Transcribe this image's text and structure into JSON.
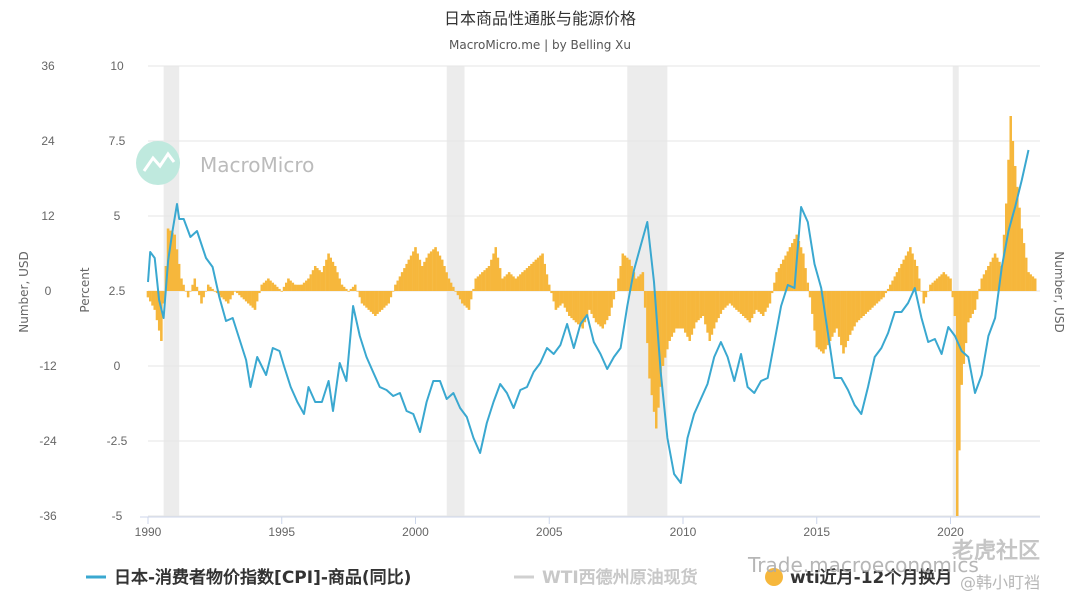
{
  "chart_data": {
    "type": "line",
    "title": "日本商品性通胀与能源价格",
    "subtitle": "MacroMicro.me | by Belling Xu",
    "watermark": "MacroMicro",
    "x_range": [
      "1990-01",
      "2023-03"
    ],
    "x_ticks": [
      "1990",
      "1995",
      "2000",
      "2005",
      "2010",
      "2015",
      "2020"
    ],
    "recessions": [
      [
        "1990-08",
        "1991-03"
      ],
      [
        "2001-03",
        "2001-11"
      ],
      [
        "2007-12",
        "2009-06"
      ],
      [
        "2020-02",
        "2020-04"
      ]
    ],
    "axes": {
      "left_outer": {
        "label": "Number, USD",
        "ticks": [
          "36",
          "24",
          "12",
          "0",
          "-12",
          "-24",
          "-36"
        ],
        "range": [
          -36,
          36
        ]
      },
      "left_inner": {
        "label": "Percent",
        "ticks": [
          "10",
          "7.5",
          "5",
          "2.5",
          "0",
          "-2.5",
          "-5"
        ],
        "range": [
          -5,
          10
        ]
      },
      "right": {
        "label": "Number, USD"
      }
    },
    "series": [
      {
        "name": "日本-消费者物价指数[CPI]-商品(同比)",
        "color": "#3aa8d0",
        "axis": "left_inner",
        "points": [
          [
            "1990-01",
            2.8
          ],
          [
            "1990-02",
            3.8
          ],
          [
            "1990-04",
            3.6
          ],
          [
            "1990-06",
            2.2
          ],
          [
            "1990-08",
            1.6
          ],
          [
            "1990-10",
            3.5
          ],
          [
            "1990-12",
            4.5
          ],
          [
            "1991-02",
            5.4
          ],
          [
            "1991-03",
            4.9
          ],
          [
            "1991-05",
            4.9
          ],
          [
            "1991-08",
            4.3
          ],
          [
            "1991-11",
            4.5
          ],
          [
            "1992-03",
            3.6
          ],
          [
            "1992-06",
            3.3
          ],
          [
            "1992-09",
            2.3
          ],
          [
            "1992-12",
            1.5
          ],
          [
            "1993-03",
            1.6
          ],
          [
            "1993-06",
            0.9
          ],
          [
            "1993-09",
            0.2
          ],
          [
            "1993-11",
            -0.7
          ],
          [
            "1994-02",
            0.3
          ],
          [
            "1994-06",
            -0.3
          ],
          [
            "1994-09",
            0.6
          ],
          [
            "1994-12",
            0.5
          ],
          [
            "1995-02",
            0.0
          ],
          [
            "1995-05",
            -0.7
          ],
          [
            "1995-08",
            -1.2
          ],
          [
            "1995-11",
            -1.6
          ],
          [
            "1996-01",
            -0.7
          ],
          [
            "1996-04",
            -1.2
          ],
          [
            "1996-07",
            -1.2
          ],
          [
            "1996-10",
            -0.5
          ],
          [
            "1996-12",
            -1.5
          ],
          [
            "1997-03",
            0.1
          ],
          [
            "1997-06",
            -0.5
          ],
          [
            "1997-09",
            2.0
          ],
          [
            "1997-12",
            1.0
          ],
          [
            "1998-03",
            0.3
          ],
          [
            "1998-06",
            -0.2
          ],
          [
            "1998-09",
            -0.7
          ],
          [
            "1998-12",
            -0.8
          ],
          [
            "1999-03",
            -1.0
          ],
          [
            "1999-06",
            -0.9
          ],
          [
            "1999-09",
            -1.5
          ],
          [
            "1999-12",
            -1.6
          ],
          [
            "2000-03",
            -2.2
          ],
          [
            "2000-06",
            -1.2
          ],
          [
            "2000-09",
            -0.5
          ],
          [
            "2000-12",
            -0.5
          ],
          [
            "2001-03",
            -1.1
          ],
          [
            "2001-06",
            -0.9
          ],
          [
            "2001-09",
            -1.4
          ],
          [
            "2001-12",
            -1.7
          ],
          [
            "2002-03",
            -2.4
          ],
          [
            "2002-06",
            -2.9
          ],
          [
            "2002-09",
            -1.9
          ],
          [
            "2002-12",
            -1.2
          ],
          [
            "2003-03",
            -0.6
          ],
          [
            "2003-06",
            -0.9
          ],
          [
            "2003-09",
            -1.4
          ],
          [
            "2003-12",
            -0.8
          ],
          [
            "2004-03",
            -0.7
          ],
          [
            "2004-06",
            -0.2
          ],
          [
            "2004-09",
            0.1
          ],
          [
            "2004-12",
            0.6
          ],
          [
            "2005-03",
            0.4
          ],
          [
            "2005-06",
            0.7
          ],
          [
            "2005-09",
            1.4
          ],
          [
            "2005-12",
            0.6
          ],
          [
            "2006-03",
            1.4
          ],
          [
            "2006-06",
            1.7
          ],
          [
            "2006-09",
            0.8
          ],
          [
            "2006-12",
            0.4
          ],
          [
            "2007-03",
            -0.1
          ],
          [
            "2007-06",
            0.3
          ],
          [
            "2007-09",
            0.6
          ],
          [
            "2007-12",
            2.0
          ],
          [
            "2008-03",
            3.2
          ],
          [
            "2008-06",
            4.0
          ],
          [
            "2008-09",
            4.8
          ],
          [
            "2008-12",
            2.8
          ],
          [
            "2009-03",
            -0.2
          ],
          [
            "2009-06",
            -2.4
          ],
          [
            "2009-09",
            -3.6
          ],
          [
            "2009-12",
            -3.9
          ],
          [
            "2010-03",
            -2.4
          ],
          [
            "2010-06",
            -1.6
          ],
          [
            "2010-09",
            -1.1
          ],
          [
            "2010-12",
            -0.6
          ],
          [
            "2011-03",
            0.3
          ],
          [
            "2011-06",
            0.8
          ],
          [
            "2011-09",
            0.3
          ],
          [
            "2011-12",
            -0.5
          ],
          [
            "2012-03",
            0.4
          ],
          [
            "2012-06",
            -0.7
          ],
          [
            "2012-09",
            -0.9
          ],
          [
            "2012-12",
            -0.5
          ],
          [
            "2013-03",
            -0.4
          ],
          [
            "2013-06",
            0.8
          ],
          [
            "2013-09",
            2.0
          ],
          [
            "2013-12",
            2.7
          ],
          [
            "2014-03",
            2.6
          ],
          [
            "2014-06",
            5.3
          ],
          [
            "2014-09",
            4.8
          ],
          [
            "2014-12",
            3.4
          ],
          [
            "2015-03",
            2.6
          ],
          [
            "2015-06",
            1.1
          ],
          [
            "2015-09",
            -0.4
          ],
          [
            "2015-12",
            -0.4
          ],
          [
            "2016-03",
            -0.8
          ],
          [
            "2016-06",
            -1.3
          ],
          [
            "2016-09",
            -1.6
          ],
          [
            "2016-12",
            -0.7
          ],
          [
            "2017-03",
            0.3
          ],
          [
            "2017-06",
            0.6
          ],
          [
            "2017-09",
            1.1
          ],
          [
            "2017-12",
            1.8
          ],
          [
            "2018-03",
            1.8
          ],
          [
            "2018-06",
            2.1
          ],
          [
            "2018-09",
            2.6
          ],
          [
            "2018-12",
            1.6
          ],
          [
            "2019-03",
            0.8
          ],
          [
            "2019-06",
            0.9
          ],
          [
            "2019-09",
            0.4
          ],
          [
            "2019-12",
            1.3
          ],
          [
            "2020-03",
            1.0
          ],
          [
            "2020-06",
            0.5
          ],
          [
            "2020-09",
            0.3
          ],
          [
            "2020-12",
            -0.9
          ],
          [
            "2021-03",
            -0.3
          ],
          [
            "2021-06",
            1.0
          ],
          [
            "2021-09",
            1.6
          ],
          [
            "2021-12",
            3.3
          ],
          [
            "2022-03",
            4.5
          ],
          [
            "2022-06",
            5.3
          ],
          [
            "2022-09",
            6.2
          ],
          [
            "2022-12",
            7.2
          ]
        ]
      },
      {
        "name": "WTI西德州原油现货",
        "color": "#d0d0d0",
        "axis": "right"
      },
      {
        "name": "wti近月-12个月换月",
        "color": "#f6b73c",
        "axis": "left_outer",
        "type": "bar",
        "points": [
          [
            "1990-01",
            -1
          ],
          [
            "1990-04",
            -3
          ],
          [
            "1990-07",
            -8
          ],
          [
            "1990-10",
            10
          ],
          [
            "1991-01",
            9
          ],
          [
            "1991-04",
            2
          ],
          [
            "1991-07",
            -1
          ],
          [
            "1991-10",
            2
          ],
          [
            "1992-01",
            -2
          ],
          [
            "1992-04",
            1
          ],
          [
            "1992-07",
            0
          ],
          [
            "1992-10",
            -1
          ],
          [
            "1993-01",
            -2
          ],
          [
            "1993-04",
            0
          ],
          [
            "1993-07",
            -1
          ],
          [
            "1993-10",
            -2
          ],
          [
            "1994-01",
            -3
          ],
          [
            "1994-04",
            1
          ],
          [
            "1994-07",
            2
          ],
          [
            "1994-10",
            1
          ],
          [
            "1995-01",
            0
          ],
          [
            "1995-04",
            2
          ],
          [
            "1995-07",
            1
          ],
          [
            "1995-10",
            1
          ],
          [
            "1996-01",
            2
          ],
          [
            "1996-04",
            4
          ],
          [
            "1996-07",
            3
          ],
          [
            "1996-10",
            6
          ],
          [
            "1997-01",
            4
          ],
          [
            "1997-04",
            1
          ],
          [
            "1997-07",
            0
          ],
          [
            "1997-10",
            1
          ],
          [
            "1998-01",
            -2
          ],
          [
            "1998-04",
            -3
          ],
          [
            "1998-07",
            -4
          ],
          [
            "1998-10",
            -3
          ],
          [
            "1999-01",
            -2
          ],
          [
            "1999-04",
            1
          ],
          [
            "1999-07",
            3
          ],
          [
            "1999-10",
            5
          ],
          [
            "2000-01",
            7
          ],
          [
            "2000-04",
            4
          ],
          [
            "2000-07",
            6
          ],
          [
            "2000-10",
            7
          ],
          [
            "2001-01",
            5
          ],
          [
            "2001-04",
            2
          ],
          [
            "2001-07",
            0
          ],
          [
            "2001-10",
            -2
          ],
          [
            "2002-01",
            -3
          ],
          [
            "2002-04",
            2
          ],
          [
            "2002-07",
            3
          ],
          [
            "2002-10",
            4
          ],
          [
            "2003-01",
            7
          ],
          [
            "2003-04",
            2
          ],
          [
            "2003-07",
            3
          ],
          [
            "2003-10",
            2
          ],
          [
            "2004-01",
            3
          ],
          [
            "2004-04",
            4
          ],
          [
            "2004-07",
            5
          ],
          [
            "2004-10",
            6
          ],
          [
            "2005-01",
            1
          ],
          [
            "2005-04",
            -3
          ],
          [
            "2005-07",
            -2
          ],
          [
            "2005-10",
            -4
          ],
          [
            "2006-01",
            -5
          ],
          [
            "2006-04",
            -6
          ],
          [
            "2006-07",
            -3
          ],
          [
            "2006-10",
            -5
          ],
          [
            "2007-01",
            -6
          ],
          [
            "2007-04",
            -4
          ],
          [
            "2007-07",
            0
          ],
          [
            "2007-10",
            6
          ],
          [
            "2008-01",
            5
          ],
          [
            "2008-04",
            2
          ],
          [
            "2008-07",
            3
          ],
          [
            "2008-10",
            -14
          ],
          [
            "2009-01",
            -22
          ],
          [
            "2009-04",
            -12
          ],
          [
            "2009-07",
            -8
          ],
          [
            "2009-10",
            -6
          ],
          [
            "2010-01",
            -6
          ],
          [
            "2010-04",
            -8
          ],
          [
            "2010-07",
            -5
          ],
          [
            "2010-10",
            -4
          ],
          [
            "2011-01",
            -8
          ],
          [
            "2011-04",
            -5
          ],
          [
            "2011-07",
            -3
          ],
          [
            "2011-10",
            -2
          ],
          [
            "2012-01",
            -3
          ],
          [
            "2012-04",
            -4
          ],
          [
            "2012-07",
            -5
          ],
          [
            "2012-10",
            -3
          ],
          [
            "2013-01",
            -4
          ],
          [
            "2013-04",
            -2
          ],
          [
            "2013-07",
            3
          ],
          [
            "2013-10",
            5
          ],
          [
            "2014-01",
            7
          ],
          [
            "2014-04",
            9
          ],
          [
            "2014-07",
            6
          ],
          [
            "2014-10",
            -1
          ],
          [
            "2015-01",
            -9
          ],
          [
            "2015-04",
            -10
          ],
          [
            "2015-07",
            -8
          ],
          [
            "2015-10",
            -6
          ],
          [
            "2016-01",
            -10
          ],
          [
            "2016-04",
            -7
          ],
          [
            "2016-07",
            -5
          ],
          [
            "2016-10",
            -4
          ],
          [
            "2017-01",
            -3
          ],
          [
            "2017-04",
            -2
          ],
          [
            "2017-07",
            -1
          ],
          [
            "2017-10",
            1
          ],
          [
            "2018-01",
            3
          ],
          [
            "2018-04",
            5
          ],
          [
            "2018-07",
            7
          ],
          [
            "2018-10",
            4
          ],
          [
            "2019-01",
            -2
          ],
          [
            "2019-04",
            1
          ],
          [
            "2019-07",
            2
          ],
          [
            "2019-10",
            3
          ],
          [
            "2020-01",
            2
          ],
          [
            "2020-03",
            -4
          ],
          [
            "2020-04",
            -36
          ],
          [
            "2020-06",
            -15
          ],
          [
            "2020-09",
            -5
          ],
          [
            "2020-12",
            -3
          ],
          [
            "2021-03",
            2
          ],
          [
            "2021-06",
            4
          ],
          [
            "2021-09",
            6
          ],
          [
            "2021-12",
            4
          ],
          [
            "2022-02",
            14
          ],
          [
            "2022-04",
            28
          ],
          [
            "2022-06",
            20
          ],
          [
            "2022-09",
            10
          ],
          [
            "2022-12",
            3
          ],
          [
            "2023-03",
            2
          ]
        ]
      }
    ],
    "footer_watermarks": [
      "Trade.macroeconomics",
      "老虎社区",
      "@韩小盯裆"
    ]
  }
}
